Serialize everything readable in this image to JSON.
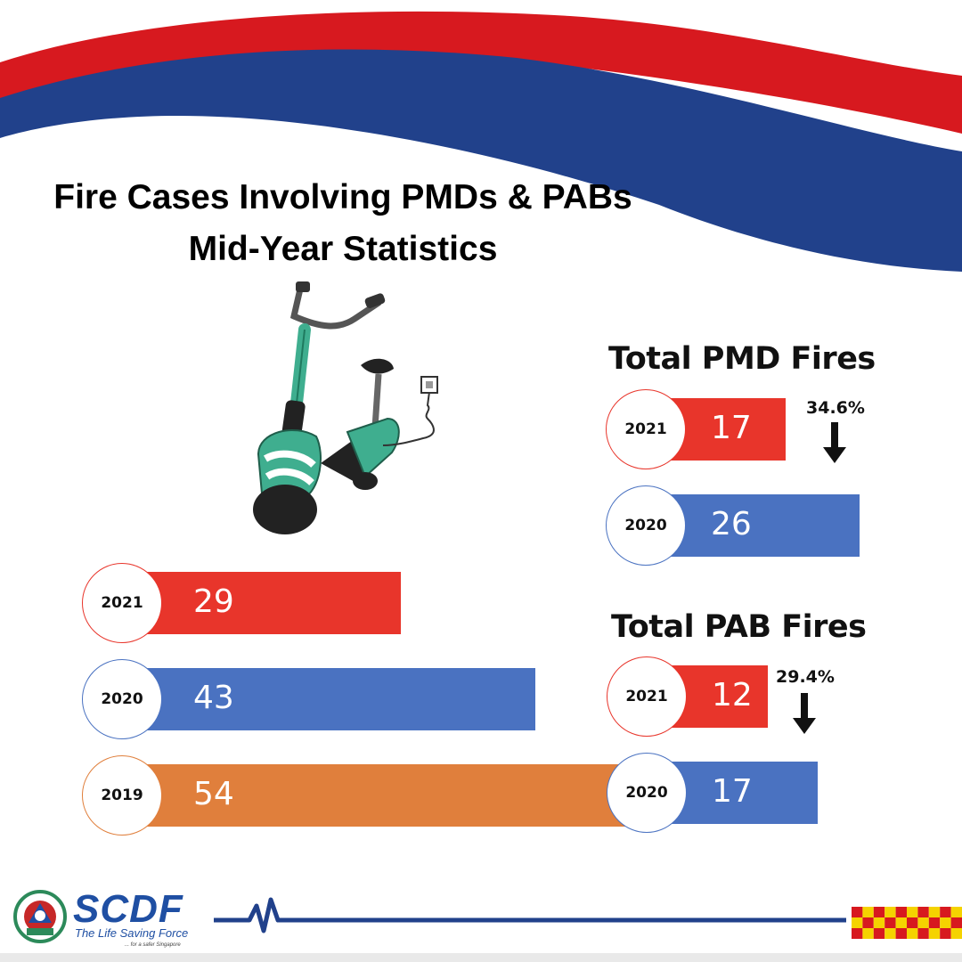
{
  "header": {
    "title_line1": "Fire Cases Involving PMDs & PABs",
    "title_line2": "Mid-Year Statistics"
  },
  "colors": {
    "red": "#e8352b",
    "blue": "#4a72c1",
    "orange": "#e07f3c",
    "wave_red": "#d7191f",
    "wave_blue": "#21418b",
    "brand_blue": "#1f4fa3"
  },
  "illustration": {
    "icon": "electric-scooter-charging-icon"
  },
  "chart_data": [
    {
      "type": "bar",
      "orientation": "horizontal",
      "title": "",
      "categories": [
        "2021",
        "2020",
        "2019"
      ],
      "values": [
        29,
        43,
        54
      ],
      "colors": [
        "#e8352b",
        "#4a72c1",
        "#e07f3c"
      ]
    },
    {
      "type": "bar",
      "orientation": "horizontal",
      "title": "Total PMD Fires",
      "categories": [
        "2021",
        "2020"
      ],
      "values": [
        17,
        26
      ],
      "colors": [
        "#e8352b",
        "#4a72c1"
      ],
      "annotation": "34.6%",
      "annotation_icon": "down-arrow-icon"
    },
    {
      "type": "bar",
      "orientation": "horizontal",
      "title": "Total PAB Fires",
      "categories": [
        "2021",
        "2020"
      ],
      "values": [
        12,
        17
      ],
      "colors": [
        "#e8352b",
        "#4a72c1"
      ],
      "annotation": "29.4%",
      "annotation_icon": "down-arrow-icon"
    }
  ],
  "footer": {
    "brand": "SCDF",
    "tagline": "The Life Saving Force",
    "subtagline": "... for a safer Singapore",
    "logo_icon": "scdf-crest-icon",
    "heartbeat_icon": "heartbeat-line-icon",
    "checker_icon": "checkered-pattern-icon"
  }
}
